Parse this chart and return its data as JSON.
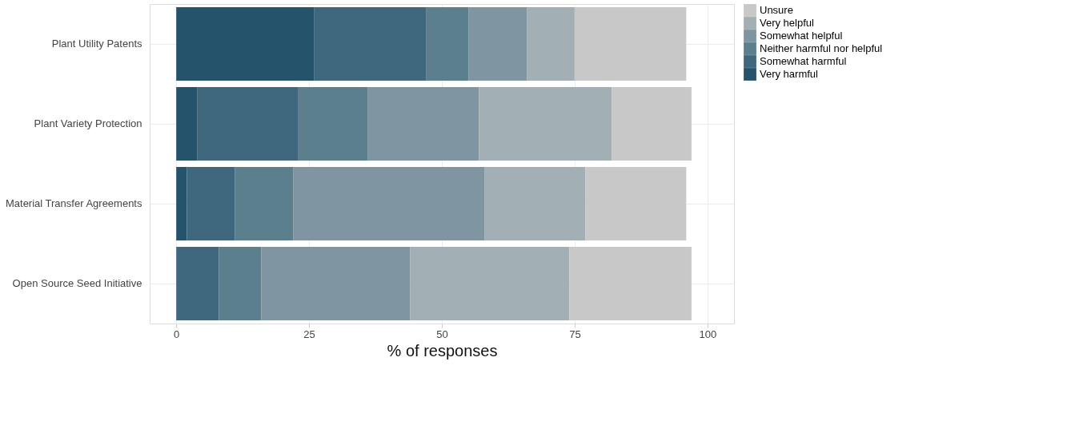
{
  "chart_data": {
    "type": "bar",
    "orientation": "horizontal",
    "stacked": true,
    "categories": [
      "Plant Utility Patents",
      "Plant Variety Protection",
      "Material Transfer Agreements",
      "Open Source Seed Initiative"
    ],
    "series": [
      {
        "name": "Very harmful",
        "color": "#24536b",
        "values": [
          26,
          4,
          2,
          0
        ]
      },
      {
        "name": "Somewhat harmful",
        "color": "#3f687e",
        "values": [
          21,
          19,
          9,
          8
        ]
      },
      {
        "name": "Neither harmful nor helpful",
        "color": "#5b7f8d",
        "values": [
          8,
          13,
          11,
          8
        ]
      },
      {
        "name": "Somewhat helpful",
        "color": "#7f95a1",
        "values": [
          11,
          21,
          36,
          28
        ]
      },
      {
        "name": "Very helpful",
        "color": "#a2afb5",
        "values": [
          9,
          25,
          19,
          30
        ]
      },
      {
        "name": "Unsure",
        "color": "#c8c8c8",
        "values": [
          21,
          15,
          19,
          23
        ]
      }
    ],
    "xlabel": "% of responses",
    "xlim": [
      -5,
      105
    ],
    "xticks": [
      0,
      25,
      50,
      75,
      100
    ],
    "grid": true,
    "legend": "right"
  }
}
